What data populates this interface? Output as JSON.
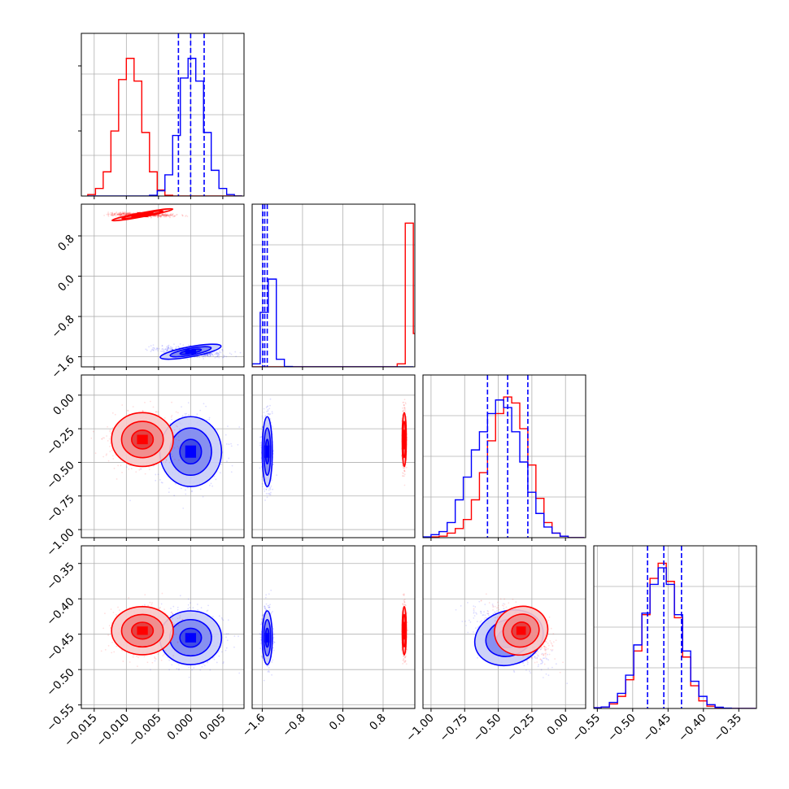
{
  "chart_data": {
    "type": "scatter",
    "subtype": "corner-plot",
    "title": "",
    "grid": true,
    "legend": "none",
    "colors": {
      "series_a": "#0000ff",
      "series_b": "#ff0000"
    },
    "series": [
      {
        "color": "#0000ff",
        "means": [
          0.0,
          -1.5,
          -0.42,
          -0.455
        ],
        "stds": [
          0.0024,
          0.05,
          0.13,
          0.019
        ]
      },
      {
        "color": "#ff0000",
        "means": [
          -0.0075,
          1.22,
          -0.33,
          -0.445
        ],
        "stds": [
          0.0024,
          0.02,
          0.1,
          0.017
        ]
      }
    ],
    "quantile_lines": {
      "color": "#0000ff",
      "params": [
        [
          -0.0019,
          0.0,
          0.0021
        ],
        [
          -1.59,
          -1.55,
          -1.5
        ],
        [
          -0.58,
          -0.43,
          -0.28
        ],
        [
          -0.479,
          -0.456,
          -0.431
        ]
      ]
    },
    "params": [
      {
        "range": [
          -0.017,
          0.0083
        ],
        "ticks": [
          -0.015,
          -0.01,
          -0.005,
          0.0,
          0.005
        ],
        "tick_labels": [
          "−0.015",
          "−0.010",
          "−0.005",
          "0.000",
          "0.005"
        ]
      },
      {
        "range": [
          -1.8,
          1.43
        ],
        "ticks": [
          -1.6,
          -0.8,
          0.0,
          0.8
        ],
        "tick_labels": [
          "−1.6",
          "−0.8",
          "0.0",
          "0.8"
        ]
      },
      {
        "range": [
          -1.06,
          0.15
        ],
        "ticks": [
          -1.0,
          -0.75,
          -0.5,
          -0.25,
          0.0
        ],
        "tick_labels": [
          "−1.00",
          "−0.75",
          "−0.50",
          "−0.25",
          "0.00"
        ]
      },
      {
        "range": [
          -0.555,
          -0.325
        ],
        "ticks": [
          -0.55,
          -0.5,
          -0.45,
          -0.4,
          -0.35
        ],
        "tick_labels": [
          "−0.55",
          "−0.50",
          "−0.45",
          "−0.40",
          "−0.35"
        ]
      }
    ],
    "histograms": [
      {
        "edges": [
          -0.016,
          -0.0148,
          -0.0136,
          -0.0124,
          -0.0112,
          -0.01,
          -0.0088,
          -0.0076,
          -0.0064,
          -0.0052,
          -0.004,
          -0.0028,
          -0.0016,
          -0.0004,
          0.0008,
          0.002,
          0.0032,
          0.0044,
          0.0056,
          0.0068,
          0.008
        ],
        "blue": [
          0,
          0,
          0,
          0,
          0,
          0,
          0,
          0,
          0.005,
          0.035,
          0.14,
          0.4,
          0.78,
          0.91,
          0.76,
          0.42,
          0.17,
          0.05,
          0.01,
          0
        ],
        "red": [
          0.01,
          0.05,
          0.16,
          0.43,
          0.77,
          0.91,
          0.76,
          0.42,
          0.16,
          0.04,
          0.005,
          0,
          0,
          0,
          0,
          0,
          0,
          0,
          0,
          0
        ]
      },
      {
        "edges": [
          -1.8,
          -1.64,
          -1.48,
          -1.32,
          -1.16,
          -1.0,
          -0.84,
          -0.68,
          -0.52,
          -0.36,
          -0.2,
          -0.04,
          0.12,
          0.28,
          0.44,
          0.6,
          0.76,
          0.92,
          1.08,
          1.24,
          1.4
        ],
        "blue": [
          0.02,
          0.36,
          0.58,
          0.05,
          0.002,
          0,
          0,
          0,
          0,
          0,
          0,
          0,
          0,
          0,
          0,
          0,
          0,
          0,
          0.0,
          0
        ],
        "red": [
          0,
          0,
          0,
          0,
          0,
          0,
          0,
          0,
          0,
          0,
          0,
          0,
          0,
          0,
          0,
          0,
          0,
          0,
          0.02,
          0.95
        ],
        "red_tail": 0.22
      },
      {
        "edges": [
          -1.06,
          -1.0,
          -0.94,
          -0.88,
          -0.82,
          -0.76,
          -0.7,
          -0.64,
          -0.58,
          -0.52,
          -0.46,
          -0.4,
          -0.34,
          -0.28,
          -0.22,
          -0.16,
          -0.1,
          -0.04,
          0.02,
          0.08,
          0.14
        ],
        "blue": [
          0.005,
          0.02,
          0.04,
          0.1,
          0.25,
          0.4,
          0.58,
          0.7,
          0.82,
          0.91,
          0.86,
          0.7,
          0.5,
          0.3,
          0.16,
          0.07,
          0.03,
          0.01,
          0.0,
          0
        ],
        "red": [
          0.0,
          0.005,
          0.01,
          0.03,
          0.06,
          0.12,
          0.25,
          0.43,
          0.64,
          0.82,
          0.93,
          0.89,
          0.72,
          0.48,
          0.26,
          0.1,
          0.03,
          0.01,
          0.0,
          0
        ]
      },
      {
        "edges": [
          -0.556,
          -0.5445,
          -0.533,
          -0.5215,
          -0.51,
          -0.4985,
          -0.487,
          -0.4755,
          -0.464,
          -0.4525,
          -0.441,
          -0.4295,
          -0.418,
          -0.4065,
          -0.395,
          -0.3835,
          -0.372,
          -0.3605,
          -0.349,
          -0.3375,
          -0.326
        ],
        "blue": [
          0.005,
          0.01,
          0.04,
          0.1,
          0.22,
          0.42,
          0.63,
          0.82,
          0.93,
          0.82,
          0.62,
          0.38,
          0.18,
          0.08,
          0.025,
          0.008,
          0.002,
          0,
          0,
          0
        ],
        "red": [
          0.005,
          0.01,
          0.03,
          0.08,
          0.19,
          0.38,
          0.62,
          0.86,
          0.96,
          0.84,
          0.6,
          0.34,
          0.15,
          0.05,
          0.015,
          0.005,
          0.001,
          0,
          0,
          0
        ]
      }
    ]
  }
}
